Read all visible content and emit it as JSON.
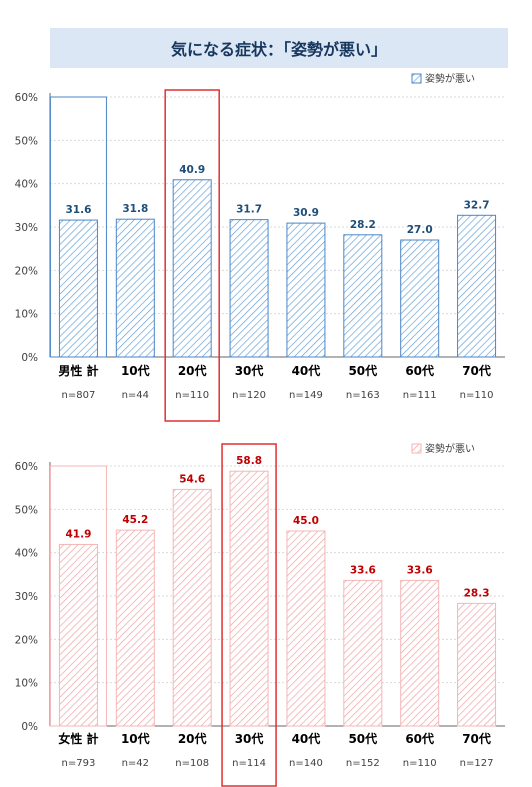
{
  "page": {
    "title": "気になる症状：「姿勢が悪い」"
  },
  "colors": {
    "male_bar_stroke": "#4a86c8",
    "male_bar_hatch": "#5b9bd5",
    "male_value_text": "#1f4e79",
    "female_bar_stroke": "#f4b6b6",
    "female_bar_hatch": "#f19c9c",
    "female_value_text": "#c00000",
    "highlight_box": "#e03030",
    "axis": "#666666",
    "grid": "#d9d9d9",
    "title_bg": "#dbe7f4",
    "title_text": "#17375e"
  },
  "chart_data": [
    {
      "type": "bar",
      "id": "male",
      "categories": [
        "男性 計",
        "10代",
        "20代",
        "30代",
        "40代",
        "50代",
        "60代",
        "70代"
      ],
      "n_labels": [
        "n=807",
        "n=44",
        "n=110",
        "n=120",
        "n=149",
        "n=163",
        "n=111",
        "n=110"
      ],
      "series": [
        {
          "name": "姿勢が悪い",
          "values": [
            31.6,
            31.8,
            40.9,
            31.7,
            30.9,
            28.2,
            27.0,
            32.7
          ]
        }
      ],
      "value_labels": [
        "31.6",
        "31.8",
        "40.9",
        "31.7",
        "30.9",
        "28.2",
        "27.0",
        "32.7"
      ],
      "yticks": [
        "0%",
        "10%",
        "20%",
        "30%",
        "40%",
        "50%",
        "60%"
      ],
      "ylim": [
        0,
        60
      ],
      "highlight_index": 2,
      "total_index": 0,
      "legend_position": "top-right",
      "grid": true
    },
    {
      "type": "bar",
      "id": "female",
      "categories": [
        "女性 計",
        "10代",
        "20代",
        "30代",
        "40代",
        "50代",
        "60代",
        "70代"
      ],
      "n_labels": [
        "n=793",
        "n=42",
        "n=108",
        "n=114",
        "n=140",
        "n=152",
        "n=110",
        "n=127"
      ],
      "series": [
        {
          "name": "姿勢が悪い",
          "values": [
            41.9,
            45.2,
            54.6,
            58.8,
            45.0,
            33.6,
            33.6,
            28.3
          ]
        }
      ],
      "value_labels": [
        "41.9",
        "45.2",
        "54.6",
        "58.8",
        "45.0",
        "33.6",
        "33.6",
        "28.3"
      ],
      "yticks": [
        "0%",
        "10%",
        "20%",
        "30%",
        "40%",
        "50%",
        "60%"
      ],
      "ylim": [
        0,
        60
      ],
      "highlight_index": 3,
      "total_index": 0,
      "legend_position": "top-right",
      "grid": true
    }
  ]
}
